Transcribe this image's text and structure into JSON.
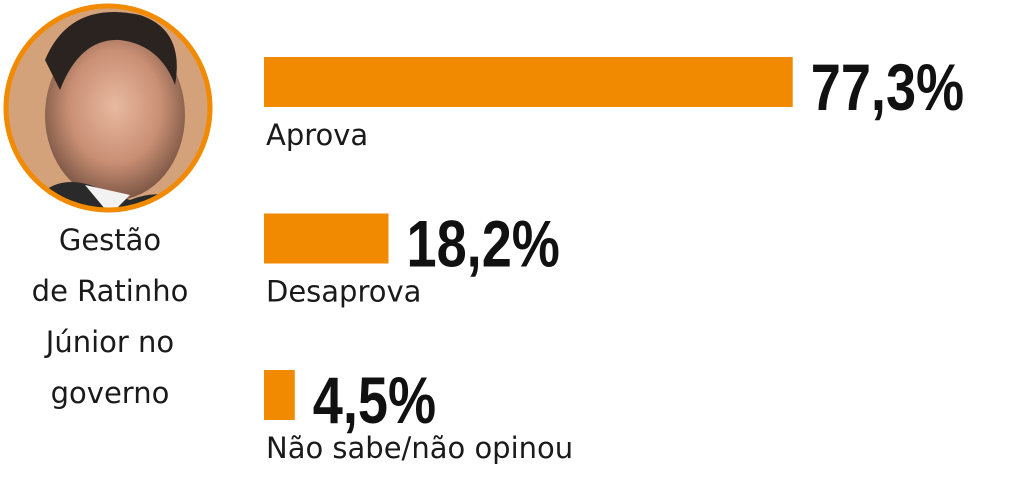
{
  "chart_data": {
    "type": "bar",
    "orientation": "horizontal",
    "title_lines": [
      "Gestão",
      "de Ratinho",
      "Júnior no",
      "governo"
    ],
    "categories": [
      "Aprova",
      "Desaprova",
      "Não sabe/não opinou"
    ],
    "values": [
      77.3,
      18.2,
      4.5
    ],
    "value_labels": [
      "77,3%",
      "18,2%",
      "4,5%"
    ],
    "color": "#f28a00"
  }
}
